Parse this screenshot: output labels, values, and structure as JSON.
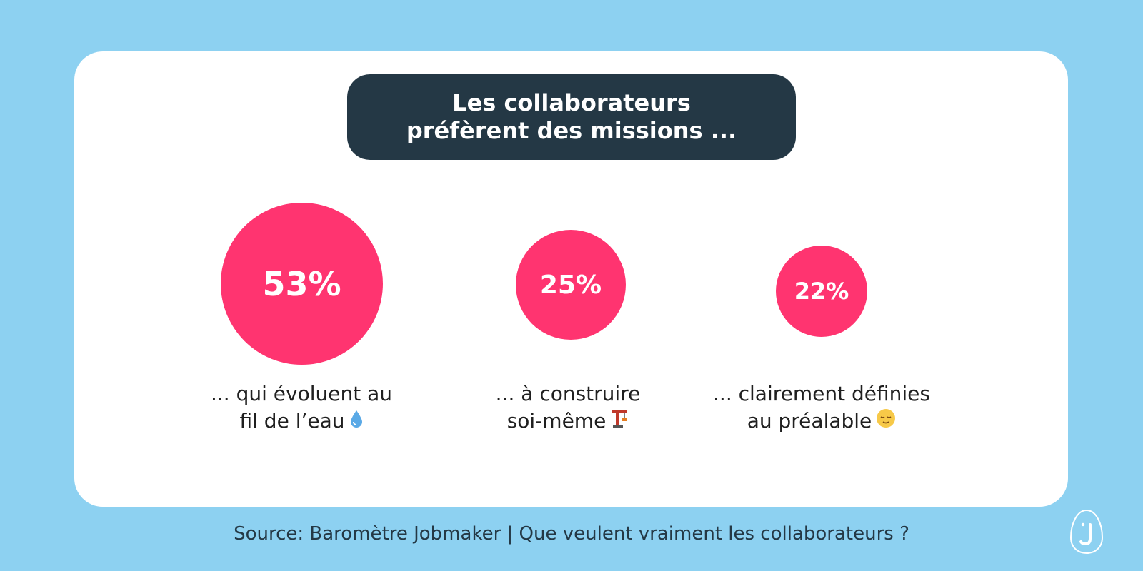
{
  "title": {
    "line1": "Les collaborateurs",
    "line2": "préfèrent des missions ..."
  },
  "chart_data": {
    "type": "bubble",
    "title": "Les collaborateurs préfèrent des missions ...",
    "categories": [
      "... qui évoluent au fil de l’eau",
      "... à construire soi-même",
      "... clairement définies au préalable"
    ],
    "values": [
      53,
      25,
      22
    ],
    "value_labels": [
      "53%",
      "25%",
      "22%"
    ],
    "unit": "%"
  },
  "items": [
    {
      "value_label": "53%",
      "label_line1": "... qui évoluent au",
      "label_line2": "fil de l’eau",
      "icon": "droplet-icon"
    },
    {
      "value_label": "25%",
      "label_line1": "... à construire",
      "label_line2": "soi-même",
      "icon": "crane-icon"
    },
    {
      "value_label": "22%",
      "label_line1": "... clairement définies",
      "label_line2": "au préalable",
      "icon": "relieved-face-icon"
    }
  ],
  "source": "Source: Baromètre Jobmaker |  Que veulent vraiment les collaborateurs ?",
  "logo_letter": "J",
  "colors": {
    "background": "#8dd1f1",
    "card": "#ffffff",
    "title_box": "#243845",
    "bubble": "#ff3470",
    "text_dark": "#1f1f1f"
  }
}
